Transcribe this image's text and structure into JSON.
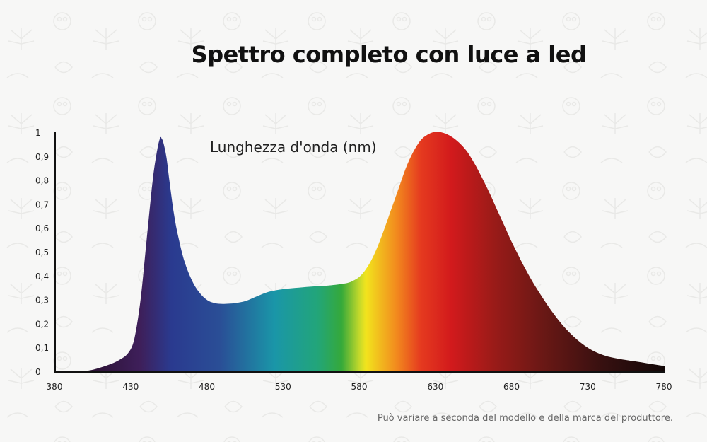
{
  "title": "Spettro completo con luce a led",
  "axis_caption": "Lunghezza d'onda (nm)",
  "footnote": "Può variare a seconda del modello e della marca del produttore.",
  "chart_data": {
    "type": "area",
    "title": "Spettro completo con luce a led",
    "xlabel": "Lunghezza d'onda (nm)",
    "ylabel": "",
    "xlim": [
      380,
      780
    ],
    "ylim": [
      0,
      1
    ],
    "x_ticks": [
      "380",
      "430",
      "480",
      "530",
      "580",
      "630",
      "680",
      "730",
      "780"
    ],
    "y_ticks": [
      "0",
      "0,1",
      "0,2",
      "0,3",
      "0,4",
      "0,5",
      "0,6",
      "0,7",
      "0,8",
      "0,9",
      "1"
    ],
    "grid": false,
    "x": [
      395,
      405,
      415,
      422,
      428,
      432,
      436,
      440,
      444,
      447,
      449,
      450,
      451,
      453,
      455,
      458,
      461,
      465,
      470,
      475,
      480,
      485,
      490,
      495,
      500,
      505,
      510,
      520,
      530,
      540,
      550,
      560,
      570,
      575,
      580,
      585,
      590,
      595,
      600,
      605,
      610,
      615,
      620,
      625,
      630,
      635,
      640,
      645,
      650,
      655,
      660,
      665,
      670,
      675,
      680,
      690,
      700,
      710,
      720,
      730,
      740,
      750,
      760,
      770,
      780
    ],
    "y": [
      0.0,
      0.01,
      0.03,
      0.05,
      0.08,
      0.14,
      0.3,
      0.55,
      0.8,
      0.93,
      0.98,
      0.975,
      0.96,
      0.9,
      0.8,
      0.66,
      0.56,
      0.46,
      0.38,
      0.33,
      0.3,
      0.288,
      0.285,
      0.286,
      0.29,
      0.297,
      0.31,
      0.335,
      0.347,
      0.353,
      0.358,
      0.362,
      0.37,
      0.38,
      0.4,
      0.44,
      0.5,
      0.58,
      0.67,
      0.76,
      0.85,
      0.92,
      0.97,
      0.995,
      1.005,
      1.0,
      0.985,
      0.96,
      0.925,
      0.875,
      0.815,
      0.75,
      0.68,
      0.61,
      0.54,
      0.415,
      0.31,
      0.22,
      0.15,
      0.1,
      0.07,
      0.055,
      0.045,
      0.035,
      0.025
    ],
    "colors": {
      "violet": "#3e1f5a",
      "blue": "#2a3a8f",
      "cyan": "#1a96a8",
      "green": "#35a93a",
      "yellow": "#f2e41d",
      "orange": "#f28a1e",
      "red": "#d21a1c",
      "dark_red": "#6a1815",
      "black": "#120707"
    }
  }
}
